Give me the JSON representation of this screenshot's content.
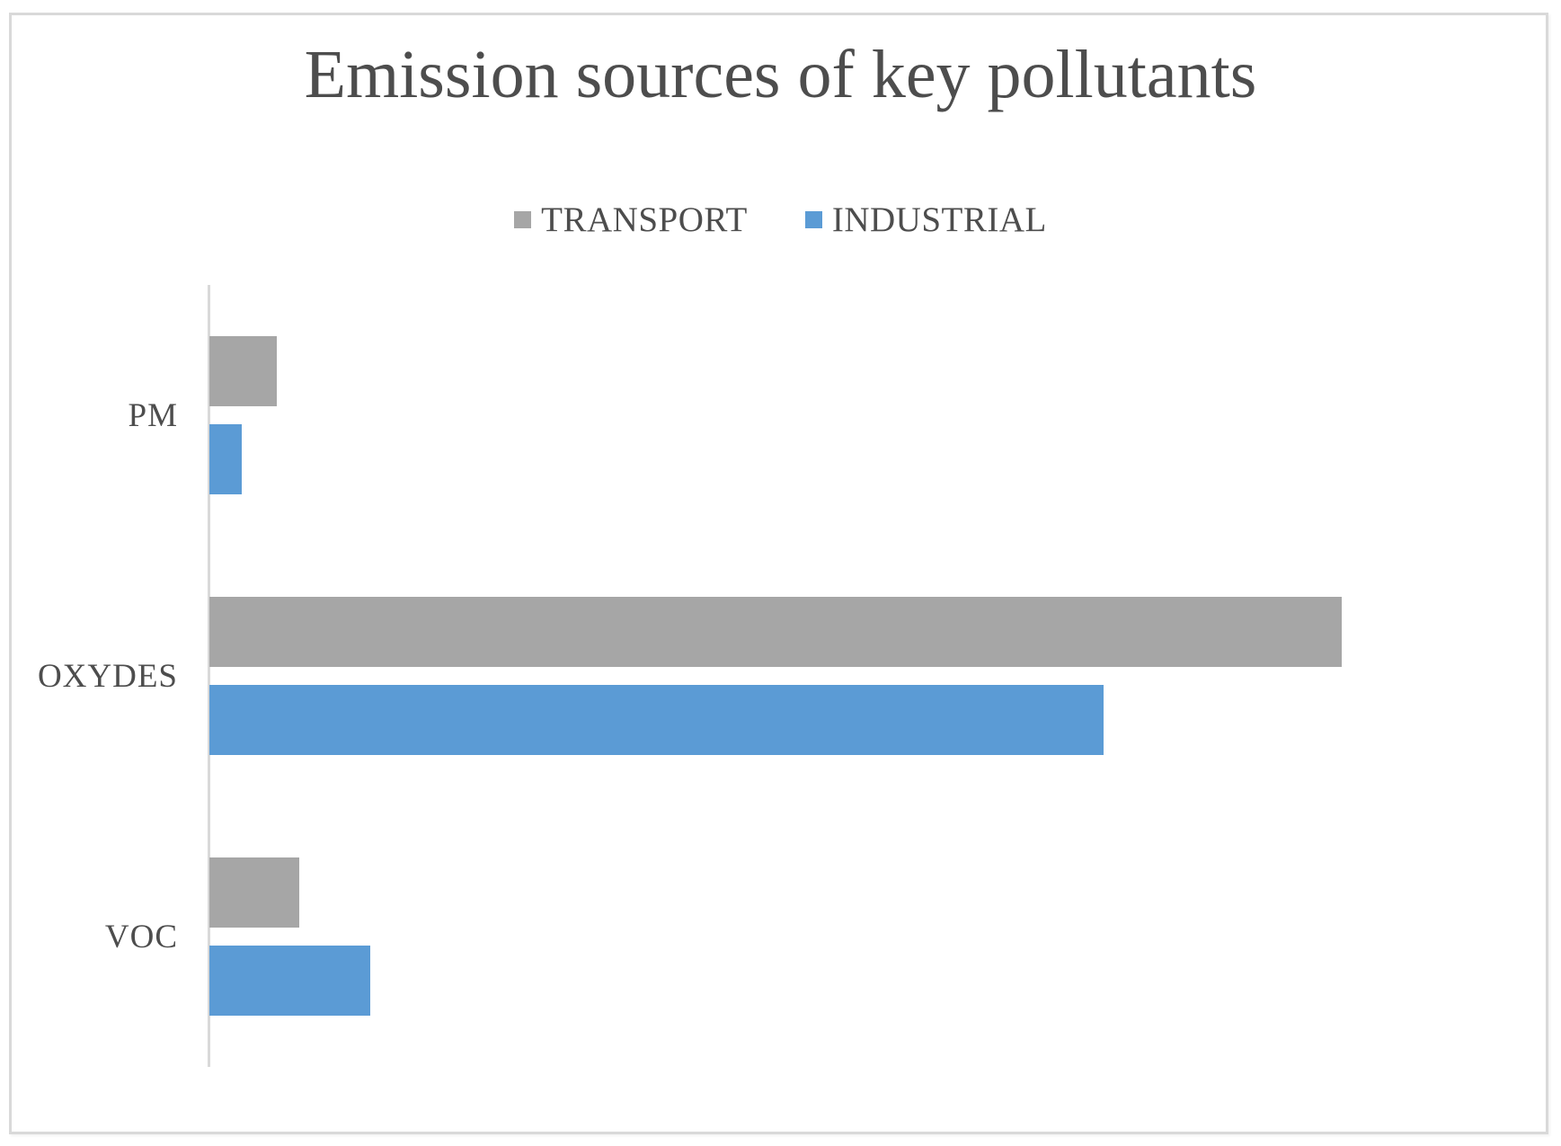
{
  "chart_data": {
    "type": "bar",
    "orientation": "horizontal",
    "title": "Emission sources of key pollutants",
    "categories": [
      "PM",
      "OXYDES",
      "VOC"
    ],
    "series": [
      {
        "name": "TRANSPORT",
        "color": "#a6a6a6",
        "values": [
          5.8,
          96.9,
          7.7
        ]
      },
      {
        "name": "INDUSTRIAL",
        "color": "#5b9bd5",
        "values": [
          2.8,
          76.5,
          13.8
        ]
      }
    ],
    "xlim": [
      0,
      100
    ],
    "x_axis_labels_visible": false,
    "grid": false,
    "legend_position": "top-center",
    "bar_order_in_category": [
      "TRANSPORT",
      "INDUSTRIAL"
    ]
  },
  "colors": {
    "frame_border": "#d9d9d9",
    "axis_line": "#d9d9d9",
    "text": "#4d4d4d",
    "background": "#ffffff"
  }
}
